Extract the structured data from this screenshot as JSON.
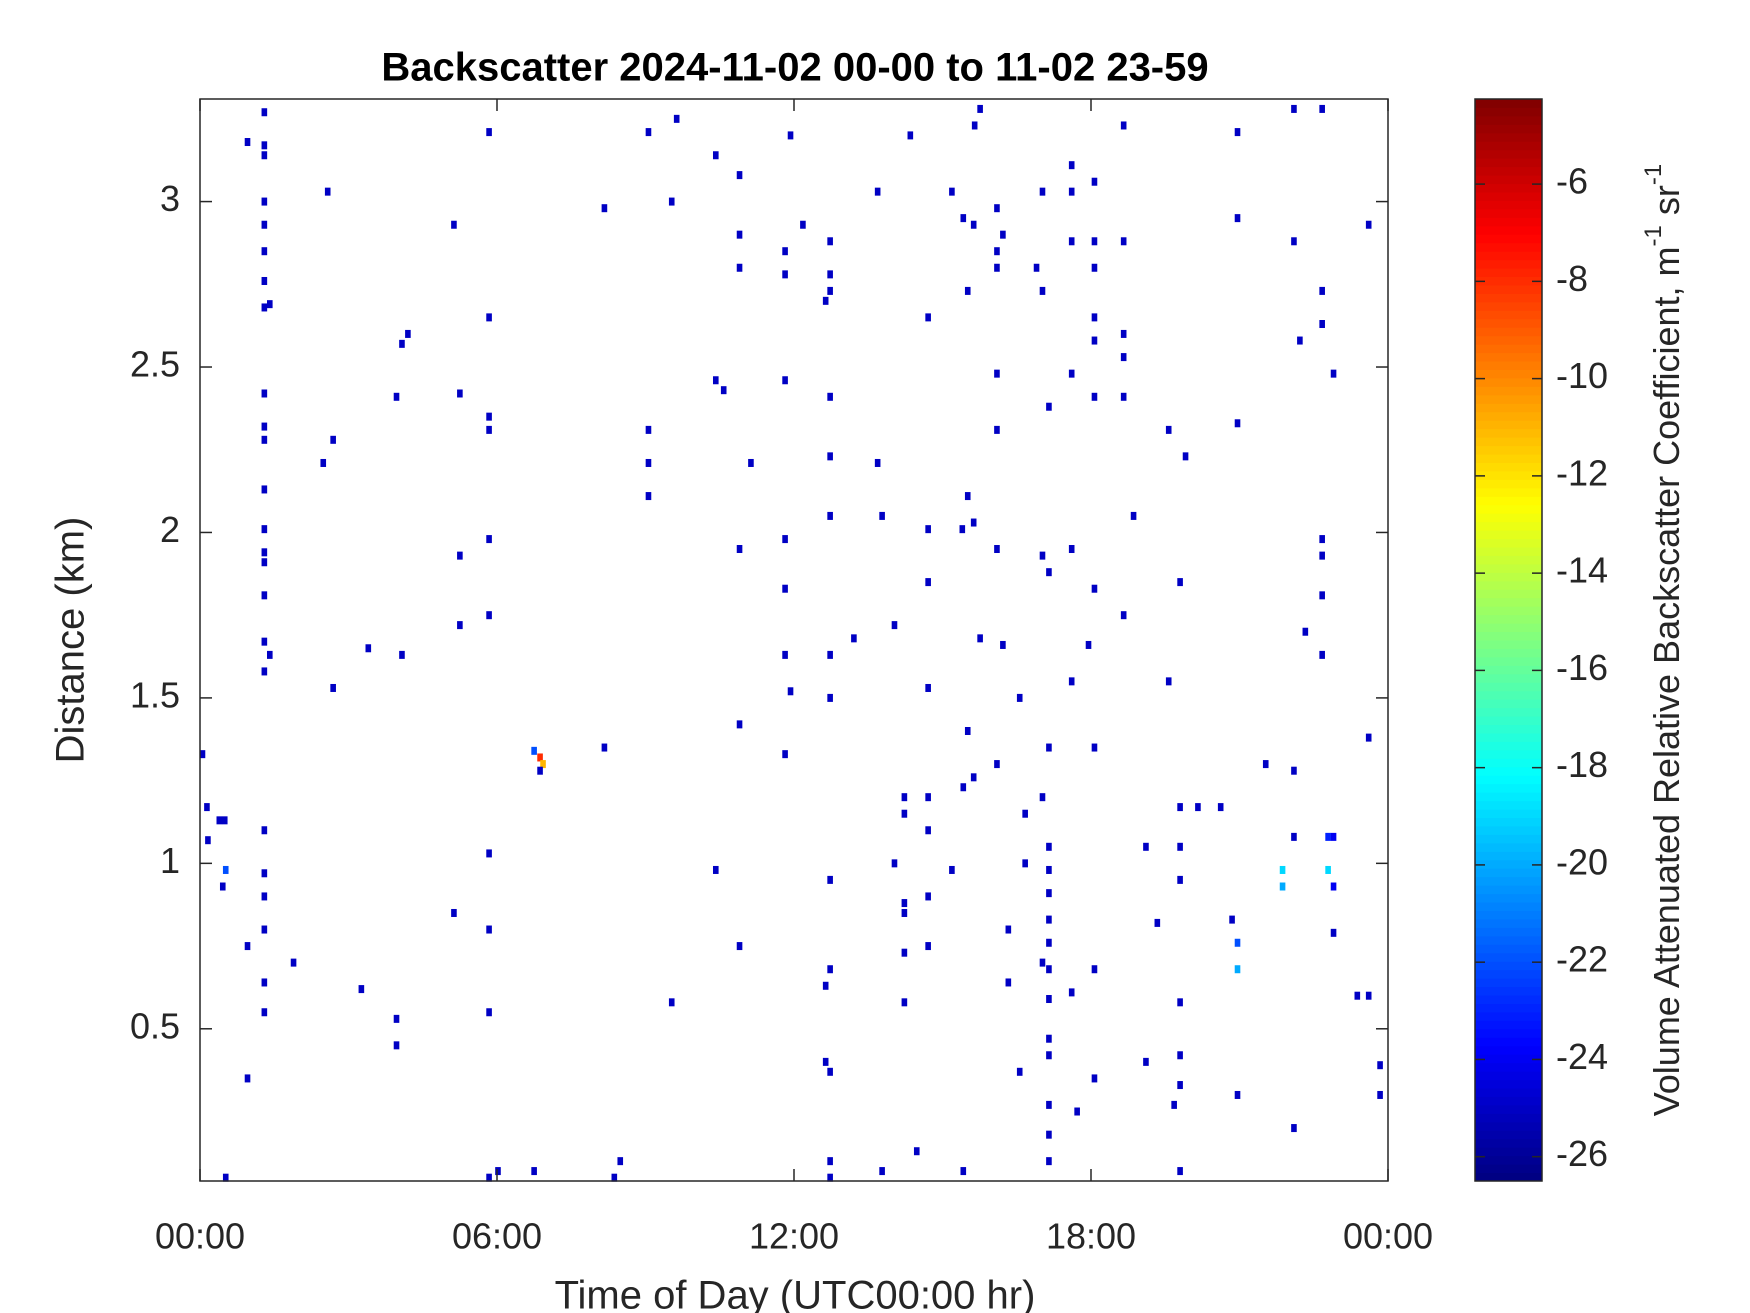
{
  "chart_data": {
    "type": "heatmap",
    "title": "Backscatter 2024-11-02 00-00 to 11-02 23-59",
    "xlabel": "Time of Day (UTC00:00 hr)",
    "ylabel": "Distance (km)",
    "colorbar_label": {
      "text": "Volume Attenuated Relative Backscatter Coefficient, m",
      "sup1": "-1",
      "mid": " sr",
      "sup2": "-1"
    },
    "colormap": "jet",
    "xlim": [
      0,
      24
    ],
    "xticks": [
      {
        "value": 0,
        "label": "00:00"
      },
      {
        "value": 6,
        "label": "06:00"
      },
      {
        "value": 12,
        "label": "12:00"
      },
      {
        "value": 18,
        "label": "18:00"
      },
      {
        "value": 24,
        "label": "00:00"
      }
    ],
    "ylim": [
      0.04,
      3.31
    ],
    "yticks": [
      0.5,
      1,
      1.5,
      2,
      2.5,
      3
    ],
    "clim": [
      -26.5,
      -4.25
    ],
    "cticks": [
      -26,
      -24,
      -22,
      -20,
      -18,
      -16,
      -14,
      -12,
      -10,
      -8,
      -6
    ],
    "x": [
      1.3,
      1.3,
      1.3,
      1.3,
      1.3,
      1.3,
      1.3,
      1.3,
      1.3,
      1.3,
      1.3,
      1.3,
      1.3,
      1.3,
      1.3,
      1.3,
      1.3,
      1.3,
      1.3,
      1.3,
      1.3,
      1.3,
      1.3,
      1.3,
      1.41,
      1.41,
      0.96,
      0.96,
      0.96,
      0.05,
      0.14,
      0.16,
      0.39,
      0.5,
      0.46,
      0.52,
      0.52,
      1.89,
      2.58,
      2.49,
      2.69,
      2.69,
      3.26,
      3.4,
      3.97,
      3.97,
      3.97,
      4.08,
      4.2,
      4.08,
      5.13,
      5.13,
      5.25,
      5.25,
      5.25,
      5.84,
      5.84,
      5.84,
      5.84,
      5.84,
      5.84,
      5.84,
      5.84,
      5.84,
      5.84,
      6.02,
      6.75,
      6.87,
      6.93,
      6.87,
      6.75,
      8.17,
      8.17,
      8.49,
      8.37,
      9.06,
      9.06,
      9.06,
      9.06,
      9.53,
      9.53,
      9.63,
      10.42,
      10.42,
      10.42,
      10.58,
      10.9,
      10.9,
      10.9,
      10.9,
      10.9,
      10.9,
      11.13,
      11.82,
      11.82,
      11.82,
      11.82,
      11.82,
      11.82,
      11.82,
      11.93,
      11.93,
      12.18,
      12.73,
      12.73,
      12.73,
      12.73,
      12.73,
      12.73,
      12.73,
      12.73,
      12.73,
      12.73,
      12.73,
      12.73,
      12.73,
      12.64,
      12.64,
      12.64,
      13.21,
      13.69,
      13.69,
      13.78,
      13.78,
      14.03,
      14.03,
      14.48,
      14.35,
      14.23,
      14.23,
      14.23,
      14.23,
      14.23,
      14.23,
      14.71,
      14.71,
      14.71,
      14.71,
      14.71,
      14.71,
      14.71,
      14.71,
      15.19,
      15.19,
      15.42,
      15.42,
      15.42,
      15.51,
      15.51,
      15.4,
      15.63,
      15.63,
      15.63,
      15.65,
      15.76,
      15.76,
      15.51,
      16.1,
      16.1,
      16.1,
      16.1,
      16.1,
      16.1,
      16.1,
      16.22,
      16.22,
      16.56,
      16.56,
      16.67,
      16.67,
      16.33,
      16.33,
      16.9,
      17.02,
      17.02,
      17.02,
      17.02,
      17.02,
      17.15,
      17.15,
      17.15,
      17.15,
      17.15,
      17.15,
      17.15,
      17.15,
      17.15,
      17.15,
      17.15,
      17.15,
      17.15,
      17.15,
      17.15,
      17.61,
      17.61,
      17.61,
      17.61,
      17.61,
      17.61,
      17.61,
      17.72,
      18.07,
      18.07,
      18.07,
      18.07,
      18.07,
      18.07,
      18.07,
      18.07,
      18.07,
      18.07,
      17.95,
      18.66,
      18.66,
      18.66,
      18.66,
      18.66,
      18.66,
      18.86,
      19.11,
      19.11,
      19.34,
      19.57,
      19.57,
      19.68,
      19.8,
      19.8,
      19.8,
      19.8,
      19.8,
      19.8,
      19.8,
      19.8,
      19.91,
      20.16,
      20.62,
      20.96,
      20.96,
      20.96,
      20.96,
      20.96,
      20.96,
      20.85,
      21.53,
      21.87,
      21.87,
      22.1,
      22.1,
      22.1,
      22.1,
      22.1,
      22.22,
      22.33,
      22.67,
      22.67,
      22.67,
      22.67,
      22.67,
      22.67,
      22.67,
      22.79,
      22.79,
      22.9,
      22.9,
      22.9,
      22.9,
      23.61,
      23.61,
      23.61,
      23.38,
      23.84,
      23.84
    ],
    "y": [
      3.27,
      3.17,
      3.14,
      3.0,
      2.93,
      2.85,
      2.76,
      2.68,
      2.42,
      2.32,
      2.28,
      2.13,
      2.01,
      1.94,
      1.91,
      1.81,
      1.67,
      1.58,
      1.1,
      0.97,
      0.9,
      0.8,
      0.64,
      0.55,
      2.69,
      1.63,
      3.18,
      0.75,
      0.35,
      1.33,
      1.17,
      1.07,
      1.13,
      1.13,
      0.93,
      0.98,
      0.05,
      0.7,
      3.03,
      2.21,
      2.28,
      1.53,
      0.62,
      1.65,
      2.41,
      0.53,
      0.45,
      2.57,
      2.6,
      1.63,
      2.93,
      0.85,
      2.42,
      1.93,
      1.72,
      3.21,
      2.65,
      2.35,
      2.31,
      1.98,
      1.75,
      1.03,
      0.8,
      0.55,
      0.05,
      0.07,
      1.34,
      1.32,
      1.3,
      1.28,
      0.07,
      2.98,
      1.35,
      0.1,
      0.05,
      3.21,
      2.31,
      2.21,
      2.11,
      3.0,
      0.58,
      3.25,
      3.14,
      2.46,
      0.98,
      2.43,
      3.08,
      2.9,
      2.8,
      1.95,
      1.42,
      0.75,
      2.21,
      2.85,
      2.78,
      2.46,
      1.98,
      1.83,
      1.63,
      1.33,
      1.52,
      3.2,
      2.93,
      2.88,
      2.78,
      2.73,
      2.41,
      2.23,
      2.05,
      1.63,
      1.5,
      0.95,
      0.68,
      0.37,
      0.1,
      0.05,
      2.7,
      0.63,
      0.4,
      1.68,
      3.03,
      2.21,
      2.05,
      0.07,
      1.72,
      1.0,
      0.13,
      3.2,
      1.2,
      1.15,
      0.88,
      0.85,
      0.73,
      0.58,
      2.65,
      2.01,
      1.85,
      1.53,
      1.2,
      1.1,
      0.9,
      0.75,
      3.03,
      0.98,
      2.95,
      1.23,
      0.07,
      2.11,
      1.4,
      2.01,
      2.03,
      2.93,
      1.26,
      3.23,
      3.28,
      1.68,
      2.73,
      2.98,
      2.85,
      2.8,
      2.48,
      2.31,
      1.95,
      1.3,
      2.9,
      1.66,
      1.5,
      0.37,
      1.15,
      1.0,
      0.8,
      0.64,
      2.8,
      3.03,
      2.73,
      1.93,
      1.2,
      0.7,
      2.38,
      1.88,
      1.35,
      1.05,
      0.98,
      0.91,
      0.83,
      0.76,
      0.68,
      0.59,
      0.47,
      0.42,
      0.27,
      0.18,
      0.1,
      3.11,
      3.03,
      2.88,
      2.48,
      1.95,
      1.55,
      0.61,
      0.25,
      3.06,
      2.88,
      2.8,
      2.65,
      2.58,
      2.41,
      1.83,
      1.35,
      0.68,
      0.35,
      1.66,
      3.23,
      2.88,
      2.6,
      2.53,
      2.41,
      1.75,
      2.05,
      1.05,
      0.4,
      0.82,
      2.31,
      1.55,
      0.27,
      1.85,
      1.05,
      0.95,
      0.58,
      0.42,
      0.33,
      0.07,
      1.17,
      2.23,
      1.17,
      1.17,
      3.21,
      2.95,
      2.33,
      0.3,
      0.76,
      0.68,
      0.83,
      1.3,
      0.98,
      0.93,
      3.28,
      1.28,
      1.08,
      0.2,
      2.88,
      2.58,
      1.7,
      3.28,
      2.73,
      2.63,
      1.98,
      1.93,
      1.81,
      1.63,
      1.08,
      0.98,
      1.08,
      0.93,
      0.79,
      2.48,
      2.93,
      1.38,
      0.6,
      0.6,
      0.39,
      0.3
    ],
    "values": [
      -25,
      -25,
      -25,
      -25,
      -25,
      -25,
      -25,
      -25,
      -25,
      -25,
      -25,
      -25,
      -25,
      -25,
      -25,
      -25,
      -25,
      -25,
      -25,
      -25,
      -25,
      -25,
      -25,
      -25,
      -25,
      -25,
      -25,
      -25,
      -25,
      -25,
      -25,
      -25,
      -25,
      -25,
      -25,
      -22,
      -25,
      -25,
      -25,
      -25,
      -25,
      -25,
      -25,
      -25,
      -25,
      -25,
      -25,
      -25,
      -25,
      -25,
      -25,
      -25,
      -25,
      -25,
      -25,
      -25,
      -25,
      -25,
      -25,
      -25,
      -25,
      -25,
      -25,
      -25,
      -25,
      -25,
      -22,
      -8,
      -11,
      -25,
      -25,
      -25,
      -25,
      -25,
      -25,
      -25,
      -25,
      -25,
      -25,
      -25,
      -25,
      -25,
      -25,
      -25,
      -25,
      -25,
      -25,
      -25,
      -25,
      -25,
      -25,
      -25,
      -25,
      -25,
      -25,
      -25,
      -25,
      -25,
      -25,
      -25,
      -25,
      -25,
      -25,
      -25,
      -25,
      -25,
      -25,
      -25,
      -25,
      -25,
      -25,
      -25,
      -25,
      -25,
      -25,
      -25,
      -25,
      -25,
      -25,
      -25,
      -25,
      -25,
      -25,
      -25,
      -25,
      -25,
      -25,
      -25,
      -25,
      -25,
      -25,
      -25,
      -25,
      -25,
      -25,
      -25,
      -25,
      -25,
      -25,
      -25,
      -25,
      -25,
      -25,
      -25,
      -25,
      -25,
      -25,
      -25,
      -25,
      -25,
      -25,
      -25,
      -25,
      -25,
      -25,
      -25,
      -25,
      -25,
      -25,
      -25,
      -25,
      -25,
      -25,
      -25,
      -25,
      -25,
      -25,
      -25,
      -25,
      -25,
      -25,
      -25,
      -25,
      -25,
      -25,
      -25,
      -25,
      -25,
      -25,
      -25,
      -25,
      -25,
      -25,
      -25,
      -25,
      -25,
      -25,
      -25,
      -25,
      -25,
      -25,
      -25,
      -25,
      -25,
      -25,
      -25,
      -25,
      -25,
      -25,
      -25,
      -25,
      -25,
      -25,
      -25,
      -25,
      -25,
      -25,
      -25,
      -25,
      -25,
      -25,
      -25,
      -25,
      -25,
      -25,
      -25,
      -25,
      -25,
      -25,
      -25,
      -25,
      -25,
      -25,
      -25,
      -25,
      -25,
      -25,
      -25,
      -25,
      -25,
      -25,
      -25,
      -25,
      -25,
      -25,
      -25,
      -25,
      -25,
      -25,
      -25,
      -22,
      -20,
      -25,
      -25,
      -19,
      -20,
      -25,
      -25,
      -25,
      -25,
      -25,
      -25,
      -25,
      -25,
      -25,
      -25,
      -25,
      -25,
      -25,
      -25,
      -23,
      -19,
      -24,
      -24,
      -25,
      -25,
      -25,
      -25,
      -25,
      -25,
      -25,
      -25
    ]
  }
}
